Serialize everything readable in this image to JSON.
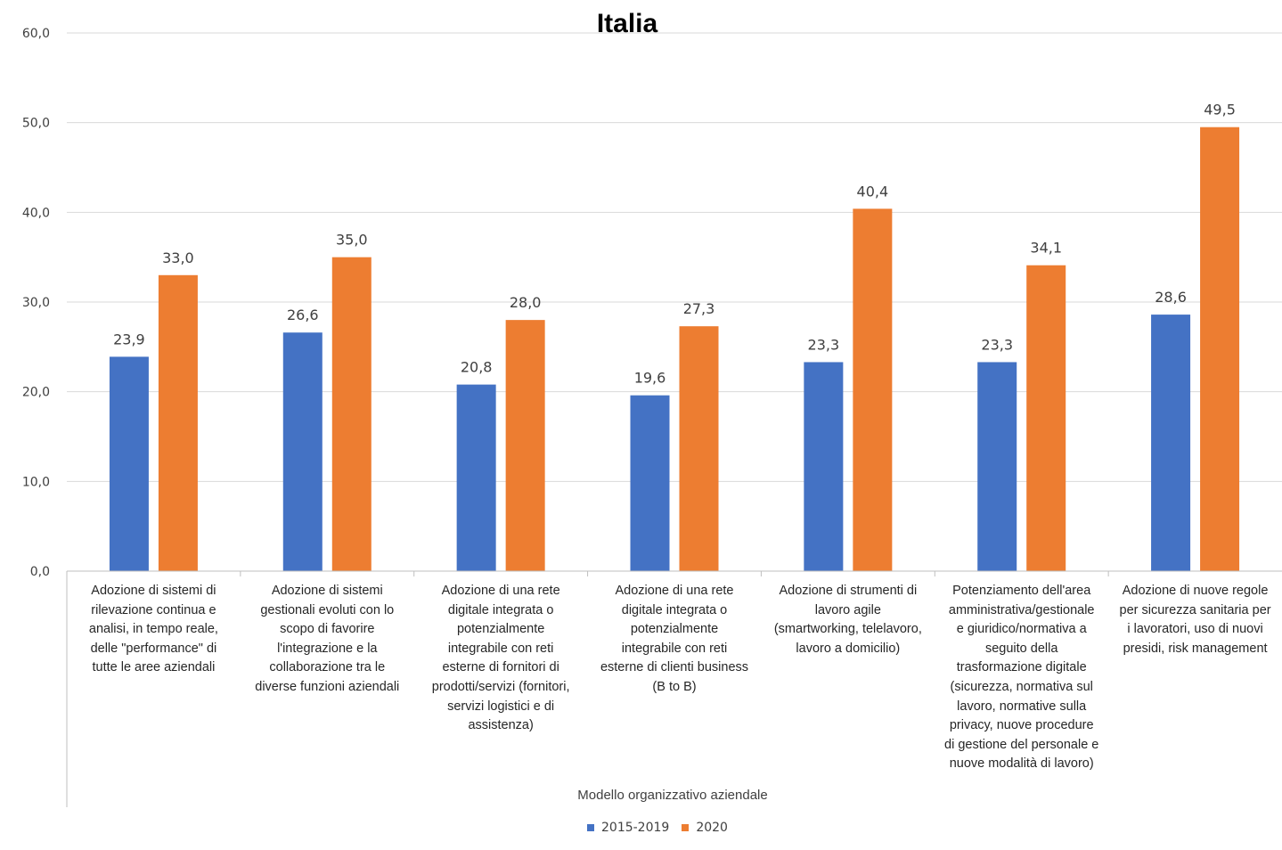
{
  "chart_data": {
    "type": "bar",
    "title": "Italia",
    "xlabel": "Modello organizzativo aziendale",
    "ylabel": "",
    "ylim": [
      0,
      60
    ],
    "yticks": [
      "0,0",
      "10,0",
      "20,0",
      "30,0",
      "40,0",
      "50,0",
      "60,0"
    ],
    "grid": true,
    "legend_position": "bottom",
    "categories": [
      "Adozione di sistemi di rilevazione continua e analisi, in tempo reale, delle \"performance\" di tutte le aree aziendali",
      "Adozione di sistemi gestionali evoluti con lo scopo di favorire l'integrazione e la collaborazione tra le diverse funzioni aziendali",
      "Adozione di una rete digitale integrata o potenzialmente integrabile con reti esterne di fornitori di prodotti/servizi (fornitori, servizi logistici e di assistenza)",
      "Adozione di una rete digitale integrata o potenzialmente integrabile con reti esterne di clienti business (B to B)",
      "Adozione di strumenti di lavoro agile (smartworking, telelavoro, lavoro a domicilio)",
      "Potenziamento dell'area amministrativa/gestionale e giuridico/normativa a seguito della trasformazione digitale (sicurezza, normativa sul lavoro, normative sulla privacy, nuove procedure di gestione del personale e nuove modalità di lavoro)",
      "Adozione di nuove regole per sicurezza sanitaria per i lavoratori, uso di nuovi presidi, risk management"
    ],
    "series": [
      {
        "name": "2015-2019",
        "color": "#4472c4",
        "values": [
          23.9,
          26.6,
          20.8,
          19.6,
          23.3,
          23.3,
          28.6
        ],
        "labels": [
          "23,9",
          "26,6",
          "20,8",
          "19,6",
          "23,3",
          "23,3",
          "28,6"
        ]
      },
      {
        "name": "2020",
        "color": "#ed7d31",
        "values": [
          33.0,
          35.0,
          28.0,
          27.3,
          40.4,
          34.1,
          49.5
        ],
        "labels": [
          "33,0",
          "35,0",
          "28,0",
          "27,3",
          "40,4",
          "34,1",
          "49,5"
        ]
      }
    ]
  },
  "category_lines": [
    [
      "Adozione di sistemi di",
      "rilevazione continua e",
      "analisi, in tempo reale,",
      "delle \"performance\" di",
      "tutte le aree aziendali"
    ],
    [
      "Adozione di sistemi",
      "gestionali evoluti con lo",
      "scopo di favorire",
      "l'integrazione e la",
      "collaborazione tra le",
      "diverse funzioni aziendali"
    ],
    [
      "Adozione di una rete",
      "digitale integrata o",
      "potenzialmente",
      "integrabile con reti",
      "esterne di fornitori di",
      "prodotti/servizi (fornitori,",
      "servizi logistici e di",
      "assistenza)"
    ],
    [
      "Adozione di una rete",
      "digitale integrata o",
      "potenzialmente",
      "integrabile con reti",
      "esterne di clienti business",
      "(B to B)"
    ],
    [
      "Adozione di strumenti di",
      "lavoro agile",
      "(smartworking, telelavoro,",
      "lavoro a domicilio)"
    ],
    [
      "Potenziamento dell'area",
      "amministrativa/gestionale",
      "e giuridico/normativa a",
      "seguito della",
      "trasformazione digitale",
      "(sicurezza, normativa sul",
      "lavoro, normative sulla",
      "privacy, nuove procedure",
      "di gestione del personale e",
      "nuove modalità di lavoro)"
    ],
    [
      "Adozione di nuove regole",
      "per sicurezza sanitaria per",
      "i lavoratori, uso di nuovi",
      "presidi, risk management"
    ]
  ]
}
